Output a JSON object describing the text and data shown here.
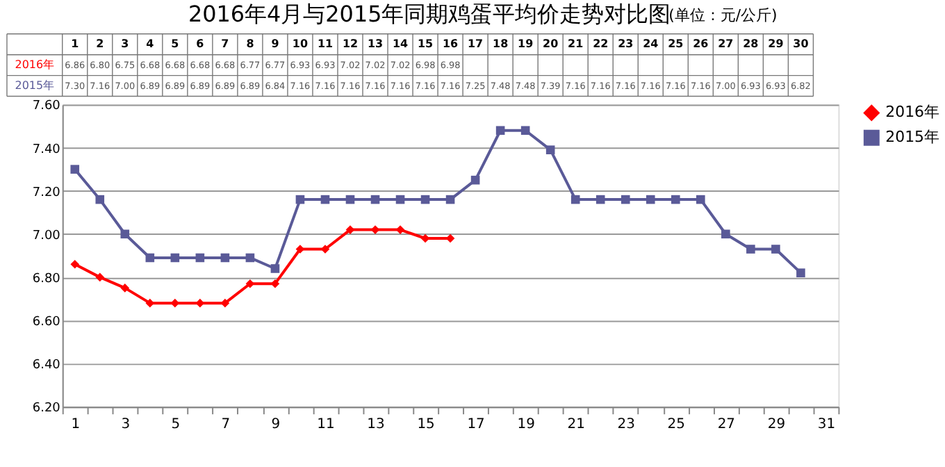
{
  "chart_data": {
    "type": "line",
    "title": "2016年4月与2015年同期鸡蛋平均价走势对比图",
    "subtitle": "(单位：元/公斤)",
    "categories": [
      "1",
      "2",
      "3",
      "4",
      "5",
      "6",
      "7",
      "8",
      "9",
      "10",
      "11",
      "12",
      "13",
      "14",
      "15",
      "16",
      "17",
      "18",
      "19",
      "20",
      "21",
      "22",
      "23",
      "24",
      "25",
      "26",
      "27",
      "28",
      "29",
      "30",
      "31"
    ],
    "series": [
      {
        "name": "2016年",
        "color": "#ff0000",
        "marker": "diamond",
        "values": [
          6.86,
          6.8,
          6.75,
          6.68,
          6.68,
          6.68,
          6.68,
          6.77,
          6.77,
          6.93,
          6.93,
          7.02,
          7.02,
          7.02,
          6.98,
          6.98,
          null,
          null,
          null,
          null,
          null,
          null,
          null,
          null,
          null,
          null,
          null,
          null,
          null,
          null,
          null
        ],
        "value_labels": [
          "6.86",
          "6.80",
          "6.75",
          "6.68",
          "6.68",
          "6.68",
          "6.68",
          "6.77",
          "6.77",
          "6.93",
          "6.93",
          "7.02",
          "7.02",
          "7.02",
          "6.98",
          "6.98",
          null,
          null,
          null,
          null,
          null,
          null,
          null,
          null,
          null,
          null,
          null,
          null,
          null,
          null,
          null
        ]
      },
      {
        "name": "2015年",
        "color": "#5a5a98",
        "marker": "square",
        "values": [
          7.3,
          7.16,
          7.0,
          6.89,
          6.89,
          6.89,
          6.89,
          6.89,
          6.84,
          7.16,
          7.16,
          7.16,
          7.16,
          7.16,
          7.16,
          7.16,
          7.25,
          7.48,
          7.48,
          7.39,
          7.16,
          7.16,
          7.16,
          7.16,
          7.16,
          7.16,
          7.0,
          6.93,
          6.93,
          6.82,
          null
        ],
        "value_labels": [
          "7.30",
          "7.16",
          "7.00",
          "6.89",
          "6.89",
          "6.89",
          "6.89",
          "6.89",
          "6.84",
          "7.16",
          "7.16",
          "7.16",
          "7.16",
          "7.16",
          "7.16",
          "7.16",
          "7.25",
          "7.48",
          "7.48",
          "7.39",
          "7.16",
          "7.16",
          "7.16",
          "7.16",
          "7.16",
          "7.16",
          "7.00",
          "6.93",
          "6.93",
          "6.82",
          null
        ]
      }
    ],
    "ylim": [
      6.2,
      7.6
    ],
    "yticks": [
      {
        "value": 6.2,
        "label": "6.20"
      },
      {
        "value": 6.4,
        "label": "6.40"
      },
      {
        "value": 6.6,
        "label": "6.60"
      },
      {
        "value": 6.8,
        "label": "6.80"
      },
      {
        "value": 7.0,
        "label": "7.00"
      },
      {
        "value": 7.2,
        "label": "7.20"
      },
      {
        "value": 7.4,
        "label": "7.40"
      },
      {
        "value": 7.6,
        "label": "7.60"
      }
    ],
    "grid": "y",
    "legend": "right",
    "line_style": "solid"
  }
}
